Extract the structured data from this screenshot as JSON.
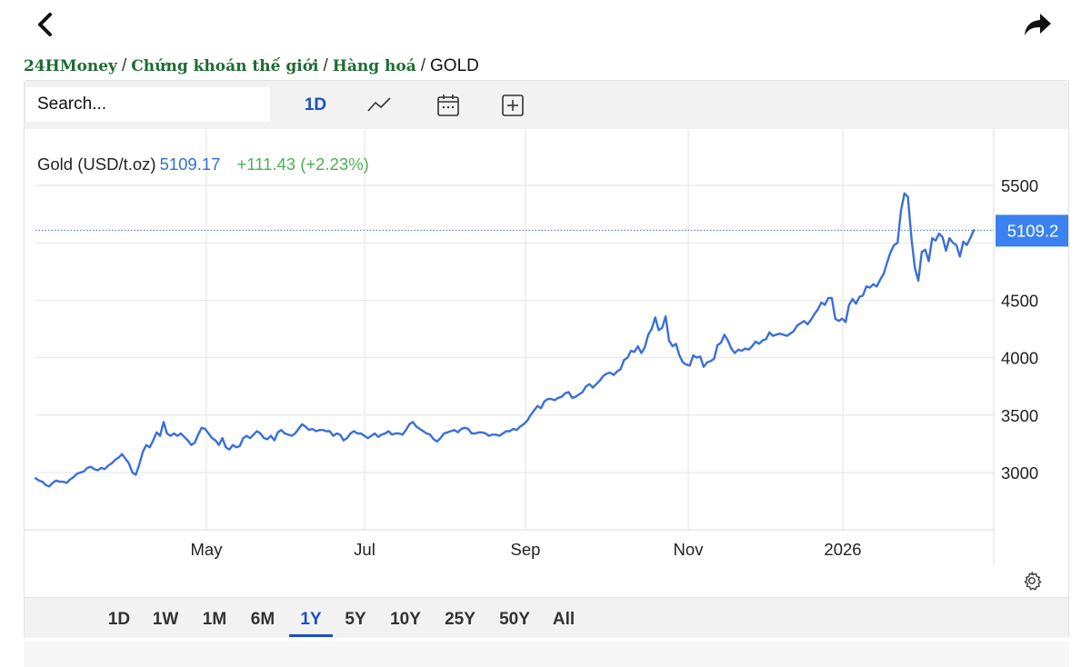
{
  "nav": {
    "back_icon": "chevron-left-icon",
    "share_icon": "share-arrow-icon"
  },
  "breadcrumb": {
    "items": [
      "24HMoney",
      "Chứng khoán thế giới",
      "Hàng hoá"
    ],
    "separator": "/",
    "current": "GOLD"
  },
  "toolbar": {
    "search_placeholder": "Search...",
    "interval": "1D",
    "line_icon": "line-chart-icon",
    "calendar_icon": "calendar-icon",
    "add_icon": "plus-box-icon"
  },
  "legend": {
    "name": "Gold (USD/t.oz)",
    "price": "5109.17",
    "change": "+111.43 (+2.23%)"
  },
  "colors": {
    "line": "#3a6fd8",
    "accent": "#1a4fc4",
    "positive": "#4caf50",
    "breadcrumb": "#1e6b34"
  },
  "chart_data": {
    "type": "line",
    "title": "",
    "xlabel": "",
    "ylabel": "",
    "x_tick_labels": [
      "May",
      "Jul",
      "Sep",
      "Nov",
      "2026"
    ],
    "y_ticks": [
      3000,
      3500,
      4000,
      4500,
      5500
    ],
    "ylim": [
      2500,
      5600
    ],
    "grid": true,
    "last_value_label": "5109.2",
    "last_value": 5109.17,
    "series": [
      {
        "values": [
          2950,
          2930,
          2920,
          2890,
          2880,
          2910,
          2930,
          2920,
          2920,
          2910,
          2940,
          2960,
          2990,
          3000,
          3010,
          3040,
          3050,
          3030,
          3020,
          3040,
          3030,
          3060,
          3080,
          3110,
          3130,
          3160,
          3120,
          3080,
          3000,
          2980,
          3070,
          3180,
          3240,
          3220,
          3280,
          3350,
          3320,
          3440,
          3340,
          3320,
          3340,
          3320,
          3340,
          3310,
          3280,
          3240,
          3260,
          3330,
          3390,
          3380,
          3340,
          3300,
          3280,
          3240,
          3300,
          3220,
          3200,
          3240,
          3220,
          3230,
          3300,
          3320,
          3300,
          3330,
          3360,
          3340,
          3300,
          3290,
          3320,
          3280,
          3350,
          3370,
          3340,
          3330,
          3320,
          3340,
          3380,
          3420,
          3400,
          3370,
          3380,
          3360,
          3370,
          3370,
          3360,
          3360,
          3320,
          3340,
          3330,
          3280,
          3300,
          3340,
          3360,
          3340,
          3340,
          3320,
          3300,
          3320,
          3340,
          3310,
          3330,
          3340,
          3360,
          3330,
          3340,
          3340,
          3330,
          3370,
          3420,
          3440,
          3400,
          3380,
          3360,
          3340,
          3330,
          3290,
          3270,
          3300,
          3340,
          3350,
          3360,
          3370,
          3350,
          3380,
          3390,
          3380,
          3340,
          3340,
          3350,
          3350,
          3340,
          3320,
          3330,
          3330,
          3320,
          3340,
          3360,
          3360,
          3380,
          3370,
          3400,
          3420,
          3450,
          3500,
          3540,
          3580,
          3560,
          3620,
          3640,
          3640,
          3630,
          3650,
          3660,
          3690,
          3700,
          3650,
          3660,
          3680,
          3700,
          3750,
          3770,
          3740,
          3770,
          3800,
          3840,
          3860,
          3870,
          3850,
          3880,
          3900,
          3980,
          4000,
          4060,
          4050,
          4100,
          4040,
          4090,
          4200,
          4250,
          4350,
          4240,
          4260,
          4360,
          4150,
          4100,
          4120,
          4020,
          3960,
          3940,
          3930,
          4020,
          4000,
          4010,
          3920,
          3960,
          3970,
          3990,
          4110,
          4130,
          4200,
          4150,
          4080,
          4040,
          4070,
          4060,
          4080,
          4070,
          4100,
          4140,
          4120,
          4150,
          4160,
          4220,
          4190,
          4200,
          4210,
          4200,
          4190,
          4210,
          4230,
          4280,
          4300,
          4320,
          4290,
          4330,
          4380,
          4420,
          4480,
          4460,
          4520,
          4520,
          4340,
          4320,
          4340,
          4310,
          4460,
          4510,
          4470,
          4530,
          4540,
          4620,
          4610,
          4640,
          4620,
          4680,
          4730,
          4830,
          4920,
          4980,
          5000,
          5280,
          5430,
          5400,
          5040,
          4780,
          4670,
          4920,
          4940,
          4840,
          5040,
          5020,
          5080,
          5050,
          4930,
          5040,
          5000,
          4980,
          4880,
          5010,
          4980,
          5040,
          5109.17
        ]
      }
    ]
  },
  "settings_icon": "gear-icon",
  "ranges": {
    "items": [
      "1D",
      "1W",
      "1M",
      "6M",
      "1Y",
      "5Y",
      "10Y",
      "25Y",
      "50Y",
      "All"
    ],
    "active": "1Y"
  }
}
